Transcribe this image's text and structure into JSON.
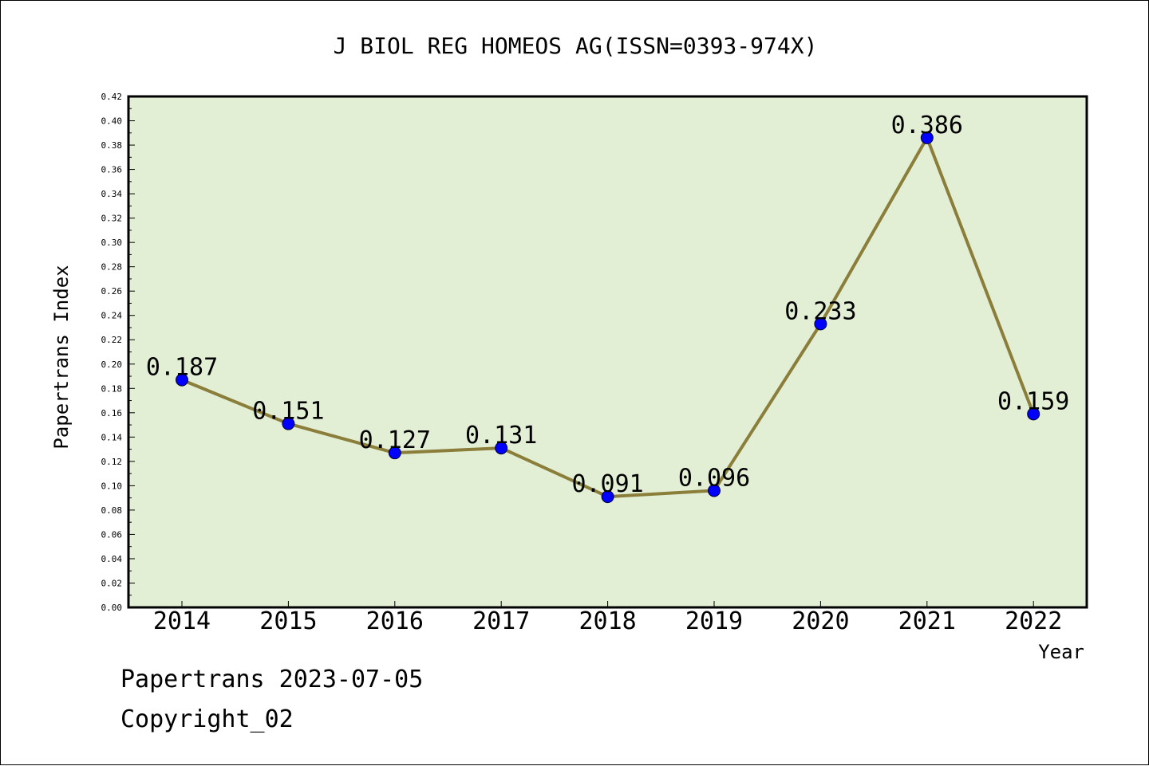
{
  "chart_data": {
    "type": "line",
    "title": "J BIOL REG HOMEOS AG(ISSN=0393-974X)",
    "xlabel": "Year",
    "ylabel": "Papertrans Index",
    "categories": [
      "2014",
      "2015",
      "2016",
      "2017",
      "2018",
      "2019",
      "2020",
      "2021",
      "2022"
    ],
    "values": [
      0.187,
      0.151,
      0.127,
      0.131,
      0.091,
      0.096,
      0.233,
      0.386,
      0.159
    ],
    "data_labels": [
      "0.187",
      "0.151",
      "0.127",
      "0.131",
      "0.091",
      "0.096",
      "0.233",
      "0.386",
      "0.159"
    ],
    "ylim": [
      0,
      0.42
    ],
    "yticks": [
      "0.00",
      "0.02",
      "0.04",
      "0.06",
      "0.08",
      "0.10",
      "0.12",
      "0.14",
      "0.16",
      "0.18",
      "0.20",
      "0.22",
      "0.24",
      "0.26",
      "0.28",
      "0.30",
      "0.32",
      "0.34",
      "0.36",
      "0.38",
      "0.40",
      "0.42"
    ],
    "grid": false,
    "colors": {
      "plot_background": "#e2efd4",
      "line": "#8b7d3a",
      "marker": "#0000ff"
    }
  },
  "footer": {
    "line1": "Papertrans 2023-07-05",
    "line2": "Copyright_02"
  }
}
